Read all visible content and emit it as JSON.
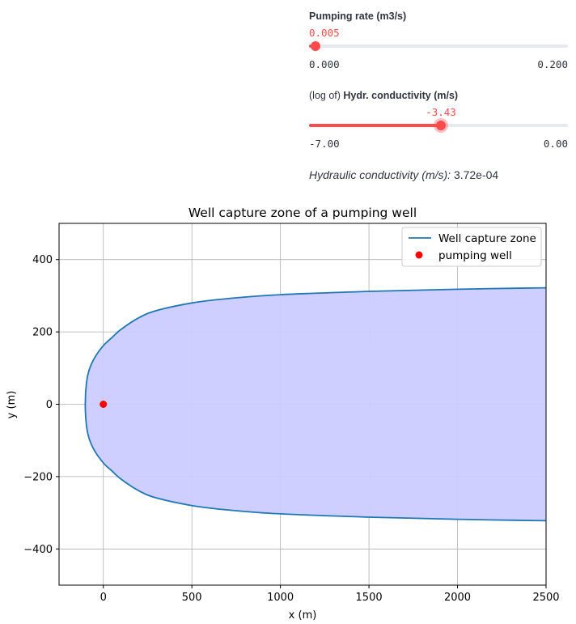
{
  "sliders": [
    {
      "label_plain": "",
      "label_bold": "Pumping rate (m3/s)",
      "value": "0.005",
      "min_label": "0.000",
      "max_label": "0.200",
      "fraction": 0.025
    },
    {
      "label_plain": "(log of) ",
      "label_bold": "Hydr. conductivity (m/s)",
      "value": "-3.43",
      "min_label": "-7.00",
      "max_label": "0.00",
      "fraction": 0.51
    }
  ],
  "hydraulic": {
    "label": "Hydraulic conductivity (m/s):",
    "value": "3.72e-04"
  },
  "colors": {
    "accent": "#ff4b4b",
    "capture_line": "#1f77b4",
    "capture_fill": "#ccccff",
    "well": "#ff0000"
  },
  "chart_data": {
    "type": "line",
    "title": "Well capture zone of a pumping well",
    "xlabel": "x (m)",
    "ylabel": "y (m)",
    "xlim": [
      -250,
      2500
    ],
    "ylim": [
      -500,
      500
    ],
    "xticks": [
      0,
      500,
      1000,
      1500,
      2000,
      2500
    ],
    "yticks": [
      400,
      200,
      0,
      -200,
      -400
    ],
    "xtick_labels": [
      "0",
      "500",
      "1000",
      "1500",
      "2000",
      "2500"
    ],
    "ytick_labels": [
      "400",
      "200",
      "0",
      "−200",
      "−400"
    ],
    "grid": true,
    "legend_position": "top-right",
    "series": [
      {
        "name": "Well capture zone",
        "kind": "line-filled",
        "x": [
          2500,
          2000,
          1500,
          1000,
          700,
          500,
          300,
          200,
          100,
          50,
          0,
          -50,
          -80,
          -95,
          -102,
          -95,
          -80,
          -50,
          0,
          50,
          100,
          200,
          300,
          500,
          700,
          1000,
          1500,
          2000,
          2500
        ],
        "y": [
          322,
          318,
          312,
          303,
          292,
          280,
          259,
          239,
          207,
          185,
          162,
          128,
          95,
          60,
          0,
          -60,
          -95,
          -128,
          -162,
          -185,
          -207,
          -239,
          -259,
          -280,
          -292,
          -303,
          -312,
          -318,
          -322
        ]
      },
      {
        "name": "pumping well",
        "kind": "point",
        "x": [
          0
        ],
        "y": [
          0
        ]
      }
    ]
  }
}
